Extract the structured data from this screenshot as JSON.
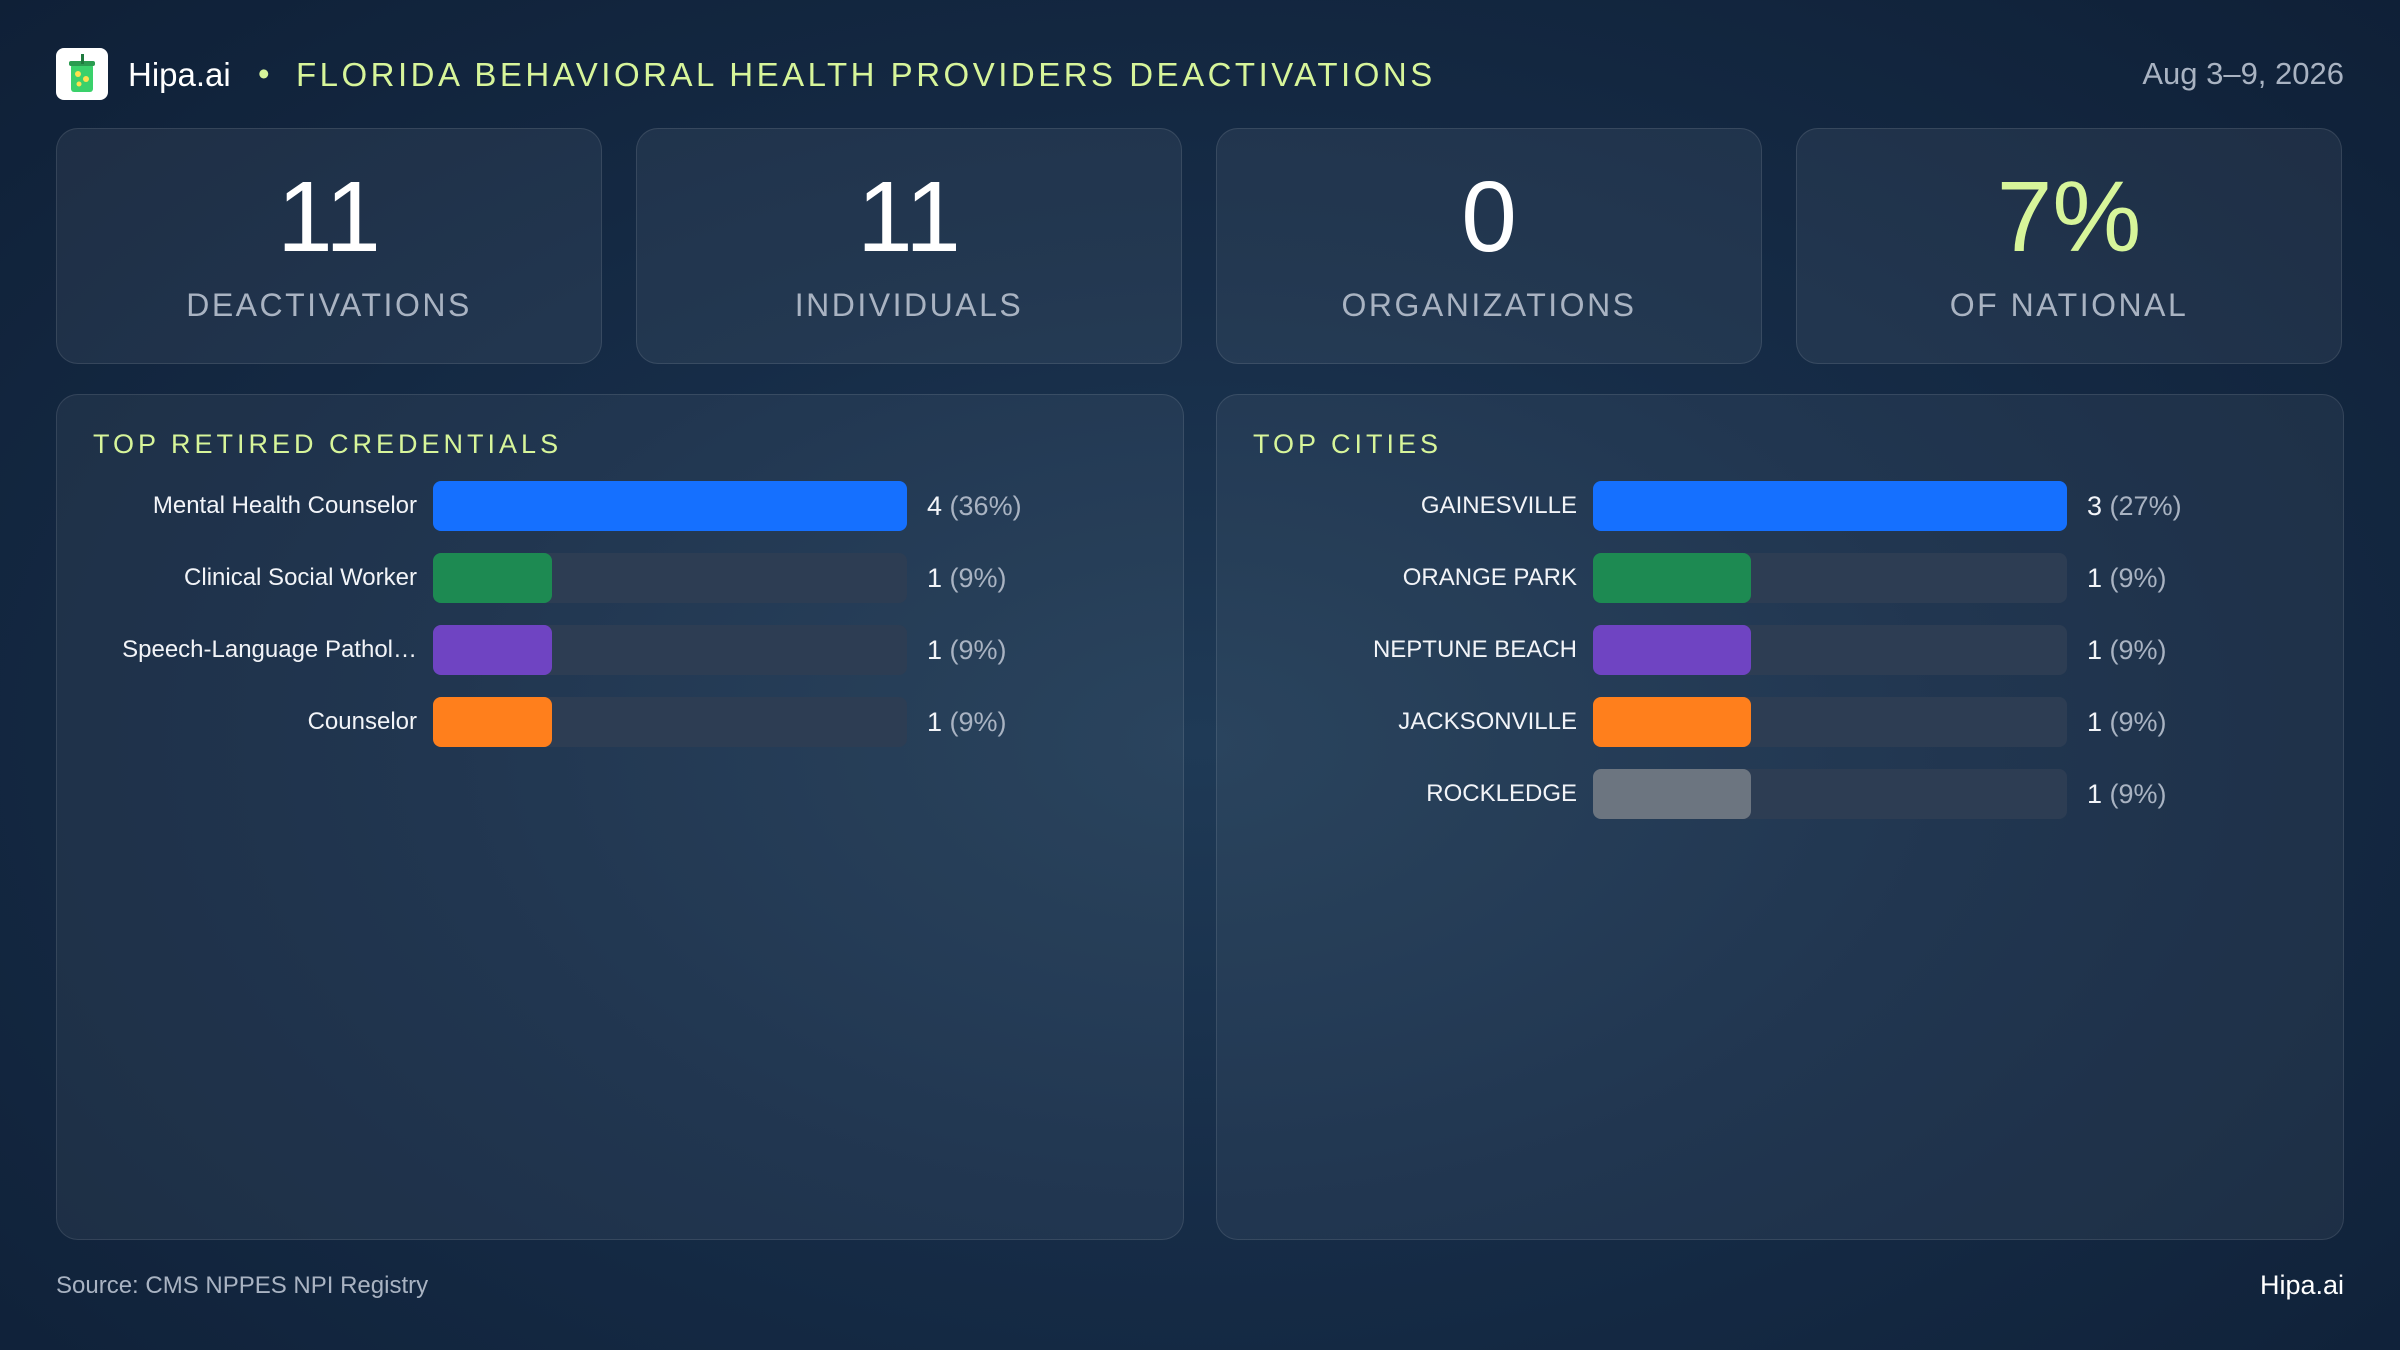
{
  "header": {
    "brand": "Hipa.ai",
    "separator": "•",
    "title": "FLORIDA BEHAVIORAL HEALTH PROVIDERS DEACTIVATIONS",
    "date_range": "Aug 3–9, 2026",
    "logo_icon": "drink-cup-icon"
  },
  "stats": [
    {
      "value": "11",
      "label": "DEACTIVATIONS"
    },
    {
      "value": "11",
      "label": "INDIVIDUALS"
    },
    {
      "value": "0",
      "label": "ORGANIZATIONS"
    },
    {
      "value": "7%",
      "label": "OF NATIONAL"
    }
  ],
  "colors": {
    "accent": "#d7f59a",
    "blue": "#1570ff",
    "green": "#1d8a52",
    "purple": "#6f44c2",
    "orange": "#ff7f1c",
    "gray": "#6c7580",
    "track": "#2d3d53"
  },
  "chart_data": [
    {
      "type": "bar",
      "orientation": "horizontal",
      "title": "TOP RETIRED CREDENTIALS",
      "xlim": [
        0,
        4
      ],
      "categories": [
        "Mental Health Counselor",
        "Clinical Social Worker",
        "Speech-Language Pathol…",
        "Counselor"
      ],
      "values": [
        4,
        1,
        1,
        1
      ],
      "percent_labels": [
        "(36%)",
        "(9%)",
        "(9%)",
        "(9%)"
      ],
      "colors": [
        "#1570ff",
        "#1d8a52",
        "#6f44c2",
        "#ff7f1c"
      ]
    },
    {
      "type": "bar",
      "orientation": "horizontal",
      "title": "TOP CITIES",
      "xlim": [
        0,
        3
      ],
      "categories": [
        "GAINESVILLE",
        "ORANGE PARK",
        "NEPTUNE BEACH",
        "JACKSONVILLE",
        "ROCKLEDGE"
      ],
      "values": [
        3,
        1,
        1,
        1,
        1
      ],
      "percent_labels": [
        "(27%)",
        "(9%)",
        "(9%)",
        "(9%)",
        "(9%)"
      ],
      "colors": [
        "#1570ff",
        "#1d8a52",
        "#6f44c2",
        "#ff7f1c",
        "#6c7580"
      ]
    }
  ],
  "footer": {
    "source": "Source: CMS NPPES NPI Registry",
    "brand": "Hipa.ai"
  }
}
